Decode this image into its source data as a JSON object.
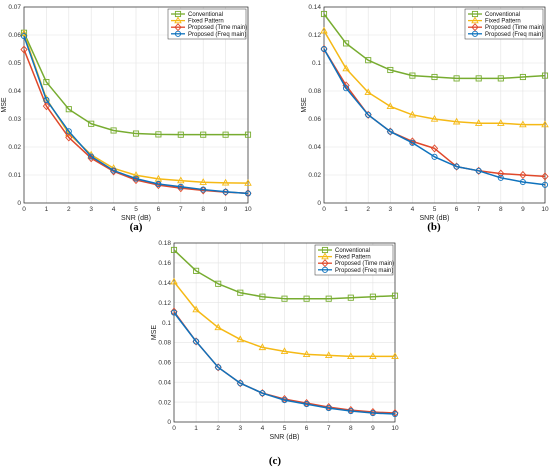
{
  "colors": {
    "conventional": "#77ac30",
    "fixed": "#f5b915",
    "time": "#e0482a",
    "freq": "#0e72bd"
  },
  "chart_data": [
    {
      "type": "line",
      "label": "(a)",
      "xlabel": "SNR (dB)",
      "ylabel": "MSE",
      "x": [
        0,
        1,
        2,
        3,
        4,
        5,
        6,
        7,
        8,
        9,
        10
      ],
      "xlim": [
        0,
        10
      ],
      "ylim": [
        0,
        0.07
      ],
      "yticks": [
        "0",
        "0.01",
        "0.02",
        "0.03",
        "0.04",
        "0.05",
        "0.06",
        "0.07"
      ],
      "grid": true,
      "legend": "top-right",
      "series": [
        {
          "name": "Conventional",
          "color": "conventional",
          "marker": "square",
          "values": [
            0.0608,
            0.0432,
            0.0335,
            0.0283,
            0.0259,
            0.0248,
            0.0245,
            0.0244,
            0.0244,
            0.0244,
            0.0244
          ]
        },
        {
          "name": "Fixed Pattern",
          "color": "fixed",
          "marker": "triangle",
          "values": [
            0.0605,
            0.0372,
            0.0248,
            0.0172,
            0.0124,
            0.0099,
            0.0086,
            0.008,
            0.0074,
            0.0072,
            0.0071
          ]
        },
        {
          "name": "Proposed (Time main)",
          "color": "time",
          "marker": "diamond",
          "values": [
            0.0548,
            0.0346,
            0.0234,
            0.016,
            0.0113,
            0.0082,
            0.0064,
            0.0053,
            0.0045,
            0.0039,
            0.0035
          ]
        },
        {
          "name": "Proposed (Freq main)",
          "color": "freq",
          "marker": "circle",
          "values": [
            0.0596,
            0.0368,
            0.0256,
            0.0166,
            0.0116,
            0.0087,
            0.0068,
            0.0058,
            0.0048,
            0.004,
            0.0034
          ]
        }
      ]
    },
    {
      "type": "line",
      "label": "(b)",
      "xlabel": "SNR (dB)",
      "ylabel": "MSE",
      "x": [
        0,
        1,
        2,
        3,
        4,
        5,
        6,
        7,
        8,
        9,
        10
      ],
      "xlim": [
        0,
        10
      ],
      "ylim": [
        0,
        0.14
      ],
      "yticks": [
        "0",
        "0.02",
        "0.04",
        "0.06",
        "0.08",
        "0.1",
        "0.12",
        "0.14"
      ],
      "grid": true,
      "legend": "top-right",
      "series": [
        {
          "name": "Conventional",
          "color": "conventional",
          "marker": "square",
          "values": [
            0.135,
            0.114,
            0.102,
            0.095,
            0.091,
            0.09,
            0.089,
            0.089,
            0.089,
            0.09,
            0.091
          ]
        },
        {
          "name": "Fixed Pattern",
          "color": "fixed",
          "marker": "triangle",
          "values": [
            0.123,
            0.096,
            0.079,
            0.069,
            0.063,
            0.06,
            0.058,
            0.057,
            0.057,
            0.056,
            0.056
          ]
        },
        {
          "name": "Proposed (Time main)",
          "color": "time",
          "marker": "diamond",
          "values": [
            0.11,
            0.084,
            0.063,
            0.051,
            0.044,
            0.039,
            0.026,
            0.023,
            0.021,
            0.02,
            0.019
          ]
        },
        {
          "name": "Proposed (Freq main)",
          "color": "freq",
          "marker": "circle",
          "values": [
            0.11,
            0.082,
            0.063,
            0.051,
            0.043,
            0.033,
            0.026,
            0.023,
            0.018,
            0.015,
            0.013
          ]
        }
      ]
    },
    {
      "type": "line",
      "label": "(c)",
      "xlabel": "SNR (dB)",
      "ylabel": "MSE",
      "x": [
        0,
        1,
        2,
        3,
        4,
        5,
        6,
        7,
        8,
        9,
        10
      ],
      "xlim": [
        0,
        10
      ],
      "ylim": [
        0,
        0.18
      ],
      "yticks": [
        "0",
        "0.02",
        "0.04",
        "0.06",
        "0.08",
        "0.1",
        "0.12",
        "0.14",
        "0.16",
        "0.18"
      ],
      "grid": true,
      "legend": "top-right",
      "series": [
        {
          "name": "Conventional",
          "color": "conventional",
          "marker": "square",
          "values": [
            0.173,
            0.152,
            0.139,
            0.13,
            0.126,
            0.124,
            0.124,
            0.124,
            0.125,
            0.126,
            0.127
          ]
        },
        {
          "name": "Fixed Pattern",
          "color": "fixed",
          "marker": "triangle",
          "values": [
            0.141,
            0.113,
            0.095,
            0.083,
            0.075,
            0.071,
            0.068,
            0.067,
            0.066,
            0.066,
            0.066
          ]
        },
        {
          "name": "Proposed (Time main)",
          "color": "time",
          "marker": "diamond",
          "values": [
            0.111,
            0.081,
            0.055,
            0.039,
            0.029,
            0.023,
            0.019,
            0.015,
            0.012,
            0.01,
            0.009
          ]
        },
        {
          "name": "Proposed (Freq main)",
          "color": "freq",
          "marker": "circle",
          "values": [
            0.11,
            0.081,
            0.055,
            0.039,
            0.029,
            0.022,
            0.018,
            0.014,
            0.011,
            0.009,
            0.008
          ]
        }
      ]
    }
  ]
}
